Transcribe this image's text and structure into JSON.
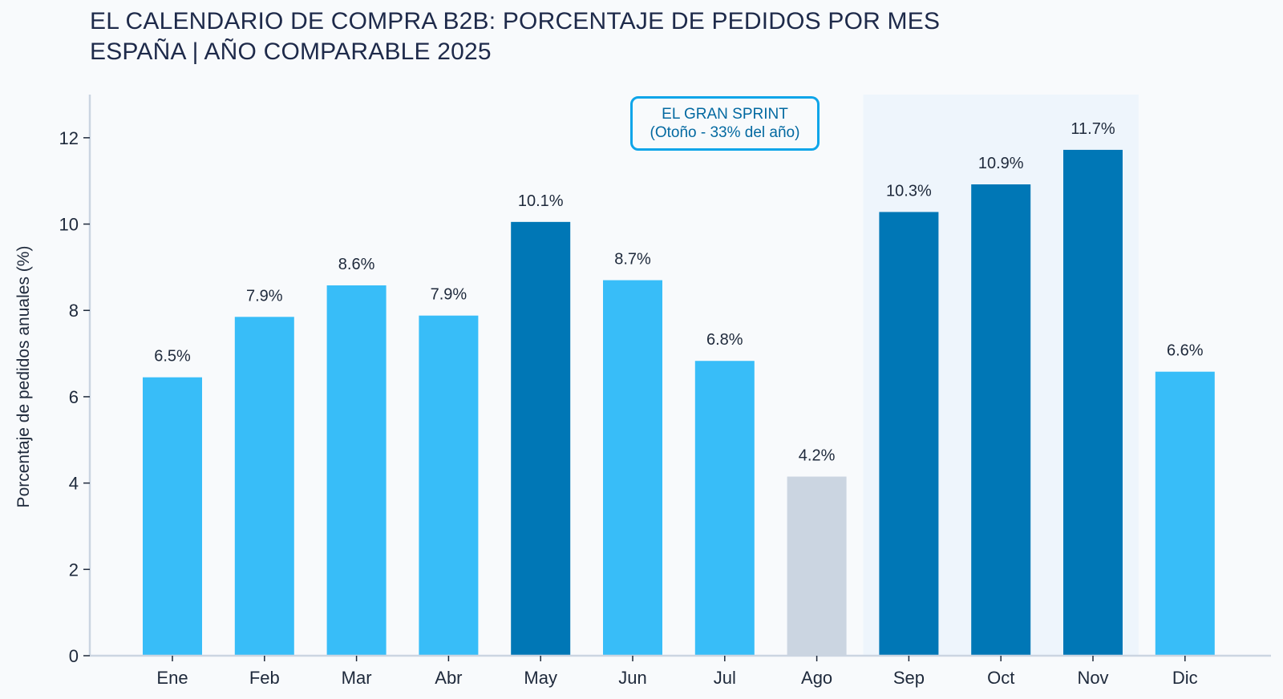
{
  "chart_data": {
    "type": "bar",
    "title": "EL CALENDARIO DE COMPRA B2B: PORCENTAJE DE PEDIDOS POR MES",
    "subtitle": "ESPAÑA | AÑO COMPARABLE 2025",
    "xlabel": "",
    "ylabel": "Porcentaje de pedidos anuales (%)",
    "categories": [
      "Ene",
      "Feb",
      "Mar",
      "Abr",
      "May",
      "Jun",
      "Jul",
      "Ago",
      "Sep",
      "Oct",
      "Nov",
      "Dic"
    ],
    "values": [
      6.45,
      7.85,
      8.58,
      7.88,
      10.05,
      8.7,
      6.83,
      4.15,
      10.28,
      10.92,
      11.72,
      6.58
    ],
    "data_labels": [
      "6.5%",
      "7.9%",
      "8.6%",
      "7.9%",
      "10.1%",
      "8.7%",
      "6.8%",
      "4.2%",
      "10.3%",
      "10.9%",
      "11.7%",
      "6.6%"
    ],
    "bar_colors": [
      "#38bdf8",
      "#38bdf8",
      "#38bdf8",
      "#38bdf8",
      "#0077b6",
      "#38bdf8",
      "#38bdf8",
      "#cbd5e1",
      "#0077b6",
      "#0077b6",
      "#0077b6",
      "#38bdf8"
    ],
    "ylim": [
      0,
      13
    ],
    "yticks": [
      0,
      2,
      4,
      6,
      8,
      10,
      12
    ],
    "grid": false,
    "highlight_region": {
      "from": "Sep",
      "to": "Nov",
      "color": "#eef5fc"
    },
    "annotation": {
      "line1": "EL GRAN SPRINT",
      "line2": "(Otoño - 33% del año)"
    },
    "colors": {
      "light_bar": "#38bdf8",
      "dark_bar": "#0077b6",
      "muted_bar": "#cbd5e1",
      "axis": "#cbd5e1",
      "annotation_border": "#0ea5e9",
      "annotation_text": "#0369a1",
      "background": "#f8fafc"
    }
  }
}
